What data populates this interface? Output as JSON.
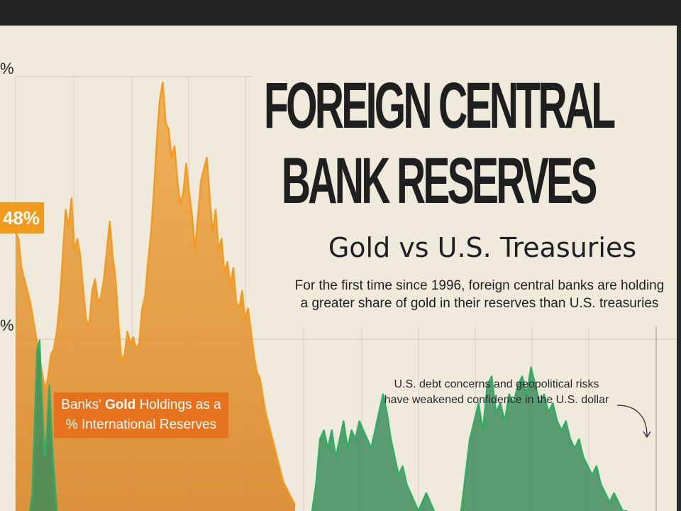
{
  "title_line1": "FOREIGN CENTRAL",
  "title_line2": "BANK RESERVES",
  "subtitle": "Gold vs U.S. Treasuries",
  "description_line1": "For the first time since 1996, foreign central banks are holding",
  "description_line2": "a greater share of gold in their reserves than U.S. treasuries",
  "annotation_line1": "U.S. debt concerns and geopolitical risks",
  "annotation_line2": "have weakened confidence in the U.S. dollar",
  "series_label": {
    "pre": "Banks' ",
    "bold": "Gold",
    "post": " Holdings as a",
    "line2": "% International Reserves"
  },
  "callout_value": "48%",
  "y_tick_labels": [
    "%",
    "%"
  ],
  "colors": {
    "gold": "#f39a1d",
    "gold_fill": "#e9a346",
    "treasury_line": "#2fae66",
    "treasury_fill": "#3f8d5c",
    "background": "#efeadc",
    "label_bg": "#e7721d"
  },
  "chart_data": {
    "type": "area",
    "title": "FOREIGN CENTRAL BANK RESERVES",
    "subtitle": "Gold vs U.S. Treasuries",
    "ylim": [
      0,
      75
    ],
    "visible_y_ticks": [
      "%",
      "%"
    ],
    "series": [
      {
        "name": "Banks' Gold Holdings as a % International Reserves",
        "x": [
          0,
          1,
          2,
          3,
          4,
          5,
          6,
          7,
          8,
          9,
          10,
          11,
          12,
          13,
          14,
          15,
          16,
          17,
          18,
          19,
          20,
          21,
          22,
          23,
          24,
          25,
          26,
          27,
          28,
          29,
          30,
          31,
          32,
          33,
          34,
          35,
          36,
          37,
          38,
          39,
          40,
          41,
          42,
          43,
          44,
          45,
          46,
          47,
          48,
          49,
          50,
          51,
          52,
          53,
          54,
          55,
          56,
          57,
          58,
          59,
          60,
          61,
          62,
          63,
          64,
          65,
          66,
          67,
          68,
          69,
          70,
          71,
          72,
          73,
          74,
          75,
          76,
          77,
          78,
          79,
          80,
          81,
          82,
          83,
          84,
          85,
          86,
          87,
          88,
          89,
          90,
          91,
          92,
          93,
          94,
          95
        ],
        "values": [
          48,
          47,
          42,
          40,
          38,
          36,
          33,
          30,
          27,
          24,
          21,
          23,
          27,
          28,
          31,
          36,
          44,
          52,
          49,
          54,
          45,
          47,
          44,
          38,
          33,
          32,
          38,
          40,
          36,
          37,
          40,
          45,
          50,
          44,
          40,
          32,
          26,
          27,
          31,
          29,
          30,
          28,
          29,
          35,
          37,
          43,
          48,
          55,
          64,
          71,
          74,
          67,
          66,
          61,
          63,
          57,
          53,
          55,
          60,
          55,
          51,
          45,
          51,
          57,
          59,
          61,
          54,
          48,
          52,
          45,
          47,
          41,
          43,
          39,
          42,
          36,
          35,
          38,
          33,
          35,
          31,
          27,
          24,
          23,
          20,
          17,
          15,
          13,
          11,
          9,
          7,
          5,
          4,
          3,
          2,
          1
        ]
      },
      {
        "name": "U.S. Treasuries",
        "x": [
          0,
          1,
          2,
          3,
          4,
          5,
          6,
          7,
          8,
          9,
          10,
          11,
          12,
          13,
          14,
          15,
          16,
          17,
          18,
          19,
          20,
          21,
          22,
          23,
          24,
          25,
          26,
          27,
          28,
          29,
          30,
          31,
          32,
          33,
          34,
          35,
          36,
          37,
          38,
          39,
          40,
          41,
          42,
          43,
          44,
          45,
          46,
          47,
          48,
          49,
          50,
          51,
          52,
          53,
          54,
          55,
          56,
          57,
          58,
          59,
          60,
          61,
          62,
          63,
          64,
          65,
          66,
          67,
          68,
          69,
          70,
          71,
          72,
          73,
          74,
          75,
          76,
          77,
          78,
          79,
          80,
          81,
          82,
          83,
          84,
          85,
          86,
          87,
          88,
          89,
          90,
          91,
          92,
          93,
          94,
          95,
          96,
          97,
          98,
          99,
          100,
          101,
          102,
          103,
          104,
          105,
          106,
          107,
          108,
          109,
          110,
          111,
          112,
          113,
          114,
          115,
          116,
          117,
          118,
          119,
          120
        ],
        "values": [
          null,
          null,
          null,
          null,
          null,
          null,
          null,
          null,
          null,
          null,
          null,
          null,
          null,
          null,
          null,
          null,
          null,
          null,
          null,
          null,
          null,
          null,
          null,
          null,
          null,
          null,
          null,
          null,
          null,
          null,
          null,
          null,
          null,
          null,
          null,
          null,
          null,
          null,
          null,
          null,
          null,
          null,
          null,
          null,
          null,
          null,
          null,
          null,
          null,
          null,
          null,
          null,
          null,
          null,
          null,
          null,
          null,
          null,
          null,
          null,
          null,
          null,
          null,
          null,
          null,
          null,
          null,
          null,
          null,
          null,
          null,
          null,
          null,
          null,
          null,
          null,
          null,
          null,
          null,
          null,
          null,
          null,
          null,
          null,
          null,
          null,
          null,
          null,
          null,
          null,
          null,
          null,
          null,
          null,
          null,
          null,
          null,
          null,
          null,
          null,
          null,
          null,
          null,
          null,
          null,
          null,
          null,
          null,
          null,
          null,
          null,
          null,
          null,
          null,
          null,
          null,
          null,
          null,
          null,
          null,
          null
        ],
        "segments": [
          {
            "x": [
              0,
              1,
              2,
              3,
              4,
              5,
              6,
              7,
              8,
              9,
              10,
              11
            ],
            "values": [
              0,
              2,
              10,
              18,
              19,
              12,
              6,
              9,
              14,
              8,
              4,
              0
            ]
          },
          {
            "x": [
              40,
              41,
              42,
              43,
              44,
              45,
              46,
              47,
              48,
              49,
              50,
              51,
              52,
              53,
              54,
              55,
              56,
              57,
              58,
              59,
              60,
              61,
              62,
              63,
              64,
              65,
              66,
              67,
              68,
              69,
              70,
              71
            ],
            "values": [
              0,
              3,
              8,
              9,
              7,
              9,
              6,
              8,
              10,
              7,
              9,
              8,
              10,
              9,
              8,
              7,
              9,
              11,
              13,
              11,
              8,
              6,
              4,
              5,
              3,
              2,
              1,
              0,
              1,
              2,
              1,
              0
            ]
          },
          {
            "x": [
              72,
              73,
              74,
              75,
              76,
              77,
              78,
              79,
              80,
              81,
              82,
              83,
              84,
              85,
              86,
              87,
              88,
              89,
              90,
              91,
              92,
              93,
              94,
              95,
              96,
              97,
              98,
              99,
              100,
              101,
              102,
              103,
              104,
              105,
              106,
              107,
              108,
              109,
              110
            ],
            "values": [
              0,
              4,
              8,
              10,
              12,
              9,
              14,
              15,
              11,
              12,
              10,
              13,
              12,
              14,
              15,
              13,
              16,
              14,
              12,
              13,
              11,
              12,
              10,
              9,
              10,
              8,
              7,
              8,
              6,
              5,
              4,
              5,
              3,
              2,
              1,
              2,
              1,
              0,
              0
            ]
          }
        ]
      }
    ]
  }
}
